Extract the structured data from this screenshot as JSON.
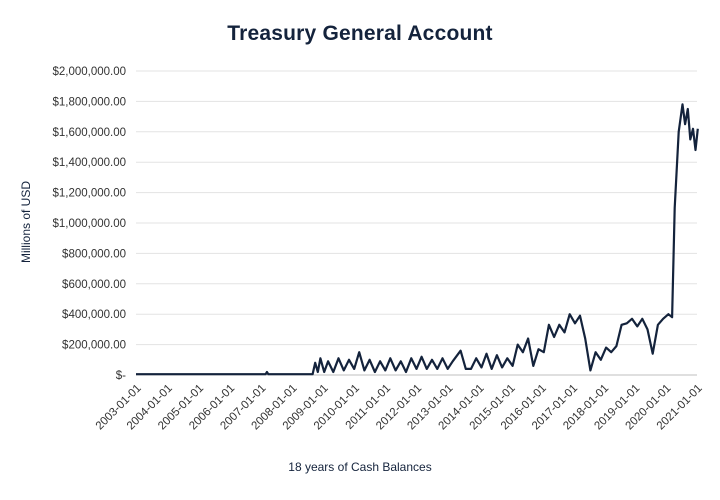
{
  "chart_data": {
    "type": "line",
    "title": "Treasury General Account",
    "xlabel": "18 years of Cash Balances",
    "ylabel": "Millions of USD",
    "ylim": [
      0,
      2000000
    ],
    "yticks": [
      0,
      200000,
      400000,
      600000,
      800000,
      1000000,
      1200000,
      1400000,
      1600000,
      1800000,
      2000000
    ],
    "ytick_labels": [
      "$-",
      "$200,000.00",
      "$400,000.00",
      "$600,000.00",
      "$800,000.00",
      "$1,000,000.00",
      "$1,200,000.00",
      "$1,400,000.00",
      "$1,600,000.00",
      "$1,800,000.00",
      "$2,000,000.00"
    ],
    "xlim": [
      "2003-01-01",
      "2021-01-01"
    ],
    "xtick_labels": [
      "2003-01-01",
      "2004-01-01",
      "2005-01-01",
      "2006-01-01",
      "2007-01-01",
      "2008-01-01",
      "2009-01-01",
      "2010-01-01",
      "2011-01-01",
      "2012-01-01",
      "2013-01-01",
      "2014-01-01",
      "2015-01-01",
      "2016-01-01",
      "2017-01-01",
      "2018-01-01",
      "2019-01-01",
      "2020-01-01",
      "2021-01-01"
    ],
    "grid": "horizontal",
    "legend": "none",
    "line_color": "#14233c",
    "series": [
      {
        "points": [
          [
            "2003-01-01",
            5000
          ],
          [
            "2004-01-01",
            5000
          ],
          [
            "2005-01-01",
            5000
          ],
          [
            "2006-01-01",
            5000
          ],
          [
            "2007-01-01",
            5000
          ],
          [
            "2007-03-01",
            6000
          ],
          [
            "2007-03-15",
            20000
          ],
          [
            "2007-04-01",
            6000
          ],
          [
            "2007-09-01",
            5000
          ],
          [
            "2008-01-01",
            5000
          ],
          [
            "2008-09-01",
            5000
          ],
          [
            "2008-10-01",
            80000
          ],
          [
            "2008-11-01",
            20000
          ],
          [
            "2008-12-01",
            110000
          ],
          [
            "2009-01-15",
            20000
          ],
          [
            "2009-03-01",
            90000
          ],
          [
            "2009-05-01",
            20000
          ],
          [
            "2009-07-01",
            110000
          ],
          [
            "2009-09-01",
            30000
          ],
          [
            "2009-11-01",
            100000
          ],
          [
            "2010-01-01",
            40000
          ],
          [
            "2010-03-01",
            150000
          ],
          [
            "2010-05-01",
            30000
          ],
          [
            "2010-07-01",
            100000
          ],
          [
            "2010-09-01",
            20000
          ],
          [
            "2010-11-01",
            90000
          ],
          [
            "2011-01-01",
            30000
          ],
          [
            "2011-03-01",
            110000
          ],
          [
            "2011-05-01",
            30000
          ],
          [
            "2011-07-01",
            90000
          ],
          [
            "2011-09-01",
            20000
          ],
          [
            "2011-11-01",
            110000
          ],
          [
            "2012-01-01",
            40000
          ],
          [
            "2012-03-01",
            120000
          ],
          [
            "2012-05-01",
            40000
          ],
          [
            "2012-07-01",
            100000
          ],
          [
            "2012-09-01",
            40000
          ],
          [
            "2012-11-01",
            110000
          ],
          [
            "2013-01-01",
            40000
          ],
          [
            "2013-03-01",
            90000
          ],
          [
            "2013-06-01",
            160000
          ],
          [
            "2013-08-01",
            40000
          ],
          [
            "2013-10-01",
            40000
          ],
          [
            "2013-12-01",
            110000
          ],
          [
            "2014-02-01",
            50000
          ],
          [
            "2014-04-01",
            140000
          ],
          [
            "2014-06-01",
            40000
          ],
          [
            "2014-08-01",
            130000
          ],
          [
            "2014-10-01",
            50000
          ],
          [
            "2014-12-01",
            110000
          ],
          [
            "2015-02-01",
            60000
          ],
          [
            "2015-04-01",
            200000
          ],
          [
            "2015-06-01",
            150000
          ],
          [
            "2015-08-01",
            240000
          ],
          [
            "2015-10-01",
            60000
          ],
          [
            "2015-12-01",
            170000
          ],
          [
            "2016-02-01",
            150000
          ],
          [
            "2016-04-01",
            330000
          ],
          [
            "2016-06-01",
            250000
          ],
          [
            "2016-08-01",
            330000
          ],
          [
            "2016-10-01",
            280000
          ],
          [
            "2016-12-01",
            400000
          ],
          [
            "2017-02-01",
            340000
          ],
          [
            "2017-04-01",
            390000
          ],
          [
            "2017-06-01",
            240000
          ],
          [
            "2017-08-01",
            30000
          ],
          [
            "2017-10-01",
            150000
          ],
          [
            "2017-12-01",
            100000
          ],
          [
            "2018-02-01",
            180000
          ],
          [
            "2018-04-01",
            150000
          ],
          [
            "2018-06-01",
            190000
          ],
          [
            "2018-08-01",
            330000
          ],
          [
            "2018-10-01",
            340000
          ],
          [
            "2018-12-01",
            370000
          ],
          [
            "2019-02-01",
            320000
          ],
          [
            "2019-04-01",
            370000
          ],
          [
            "2019-06-01",
            300000
          ],
          [
            "2019-08-01",
            140000
          ],
          [
            "2019-10-01",
            330000
          ],
          [
            "2019-12-01",
            370000
          ],
          [
            "2020-02-01",
            400000
          ],
          [
            "2020-03-15",
            380000
          ],
          [
            "2020-04-15",
            1100000
          ],
          [
            "2020-06-01",
            1600000
          ],
          [
            "2020-07-15",
            1780000
          ],
          [
            "2020-08-15",
            1650000
          ],
          [
            "2020-09-15",
            1750000
          ],
          [
            "2020-10-15",
            1550000
          ],
          [
            "2020-11-15",
            1620000
          ],
          [
            "2020-12-15",
            1480000
          ],
          [
            "2021-01-10",
            1620000
          ]
        ]
      }
    ]
  }
}
